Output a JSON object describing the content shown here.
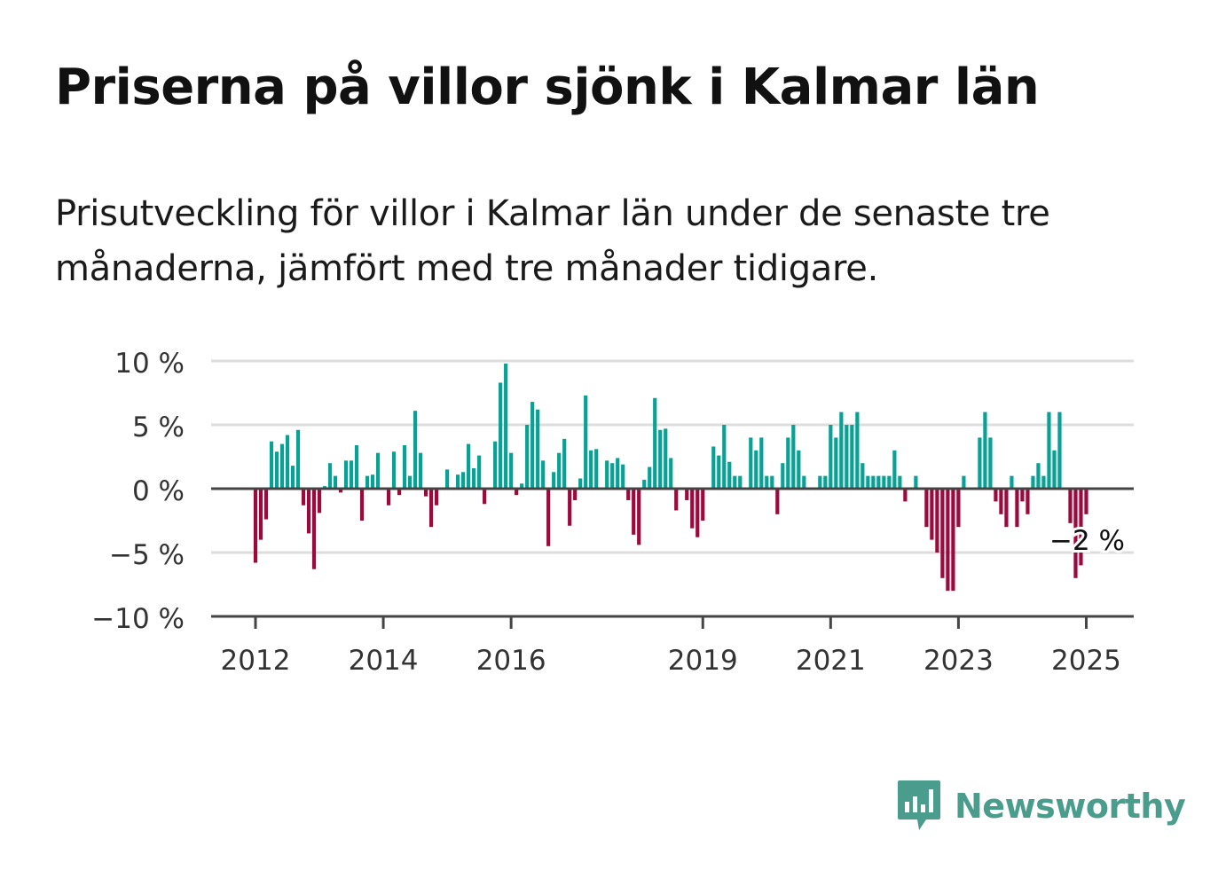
{
  "title": "Priserna på villor sjönk i Kalmar län",
  "subtitle": "Prisutveckling för villor i Kalmar län under de senaste tre månaderna, jämfört med tre månader tidigare.",
  "brand": {
    "name": "Newsworthy",
    "icon": "newsworthy-logo-icon",
    "color": "#4a9c8c"
  },
  "colors": {
    "positive": "#0aa195",
    "negative": "#9b0a3d",
    "grid": "#dddddd",
    "axis": "#444444"
  },
  "chart_data": {
    "type": "bar",
    "ylim": [
      -10,
      10
    ],
    "ytick_values": [
      10,
      5,
      0,
      -5,
      -10
    ],
    "ytick_labels": [
      "10 %",
      "5 %",
      "0 %",
      "−5 %",
      "−10 %"
    ],
    "xtick_labels": [
      "2012",
      "2014",
      "2016",
      "2019",
      "2021",
      "2023",
      "2025"
    ],
    "xtick_index": [
      0,
      24,
      48,
      84,
      108,
      132,
      156
    ],
    "annotation": "−2 %",
    "series": [
      {
        "values": [
          -5.8,
          -4,
          -2.4,
          3.7,
          2.9,
          3.5,
          4.2,
          1.8,
          4.6,
          -1.3,
          -3.5,
          -6.3,
          -1.9,
          0.2,
          2,
          1,
          -0.3,
          2.2,
          2.2,
          3.4,
          -2.5,
          1,
          1.1,
          2.8,
          0,
          -1.3,
          2.9,
          -0.5,
          3.4,
          1,
          6.1,
          2.8,
          -0.6,
          -3,
          -1.3,
          0,
          1.5,
          0,
          1.1,
          1.3,
          3.5,
          1.6,
          2.6,
          -1.2,
          0,
          3.7,
          8.3,
          9.8,
          2.8,
          -0.5,
          0.4,
          5,
          6.8,
          6.2,
          2.2,
          -4.5,
          1.3,
          2.8,
          3.9,
          -2.9,
          -0.9,
          0.8,
          7.3,
          3,
          3.1,
          0,
          2.2,
          2,
          2.4,
          1.9,
          -0.9,
          -3.6,
          -4.4,
          0.7,
          1.7,
          7.1,
          4.6,
          4.7,
          2.4,
          -1.7,
          0,
          -0.9,
          -3.1,
          -3.8,
          -2.5,
          0,
          3.3,
          2.6,
          5,
          2.1,
          1,
          1,
          0,
          4,
          3,
          4,
          1,
          1,
          -2,
          2,
          4,
          5,
          3,
          1,
          0,
          0,
          1,
          1,
          5,
          4,
          6,
          5,
          5,
          6,
          2,
          1,
          1,
          1,
          1,
          1,
          3,
          1,
          -1,
          0,
          1,
          0,
          -3,
          -4,
          -5,
          -7,
          -8,
          -8,
          -3,
          1,
          0,
          0,
          4,
          6,
          4,
          -1,
          -2,
          -3,
          1,
          -3,
          -1,
          -2,
          1,
          2,
          1,
          6,
          3,
          6,
          0,
          -2.7,
          -7,
          -6,
          -2
        ]
      }
    ]
  }
}
